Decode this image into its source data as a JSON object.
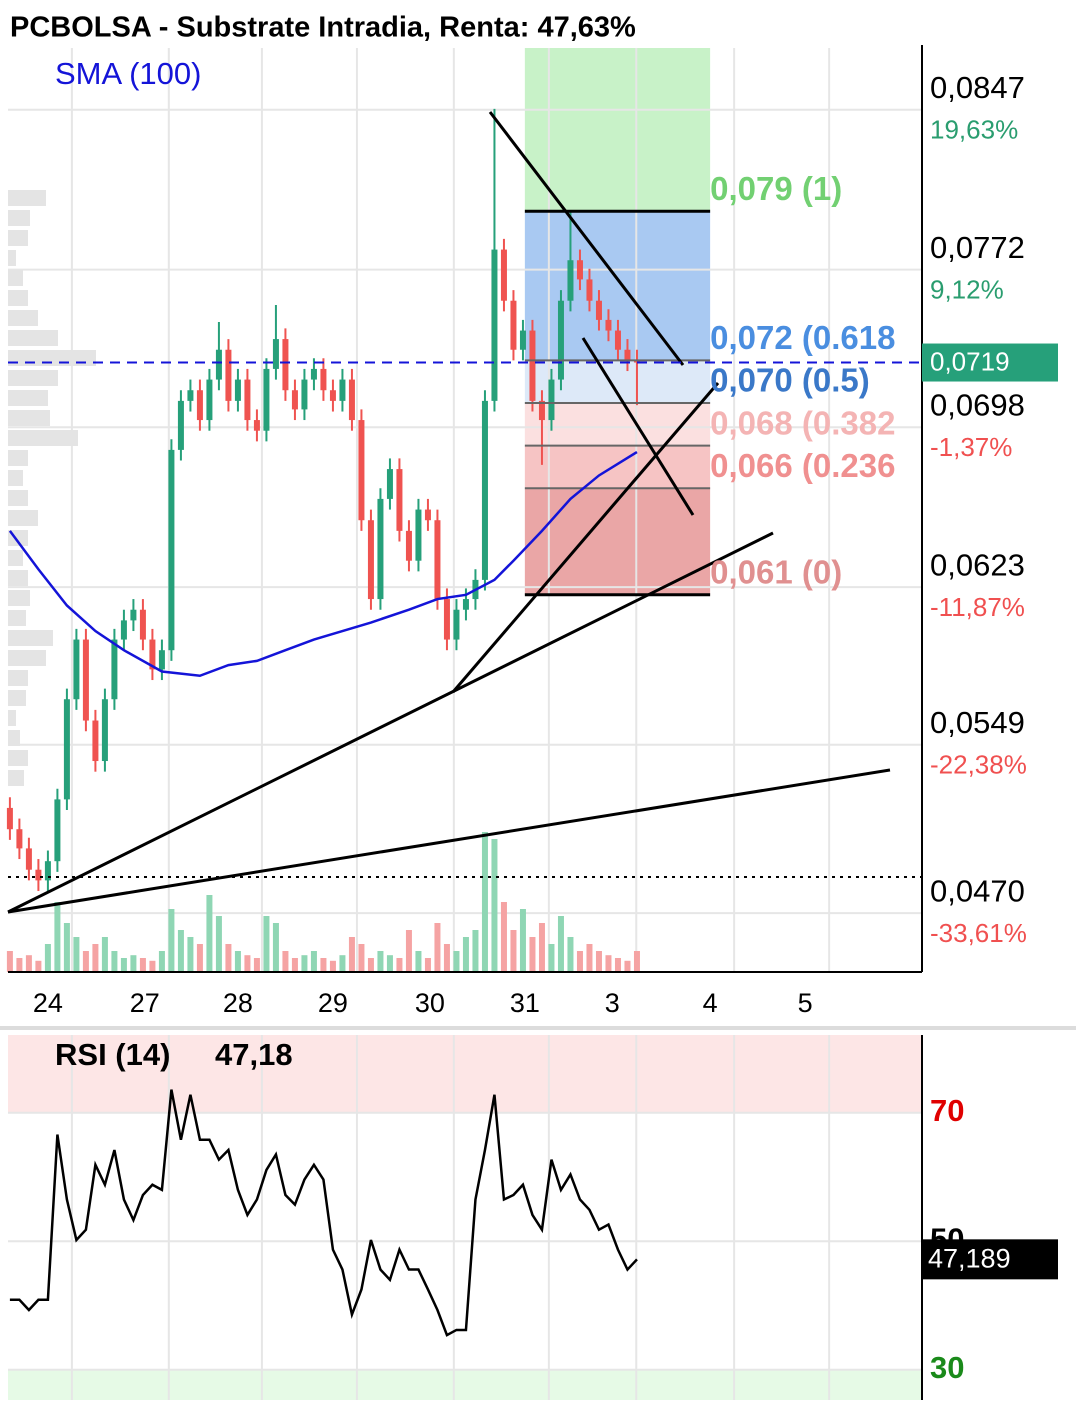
{
  "chart_data": [
    {
      "type": "candlestick",
      "title": "PCBOLSA - Substrate Intradia, Renta: 47,63%",
      "open": [
        0.051,
        0.05,
        0.0491,
        0.0481,
        0.0476,
        0.0485,
        0.0514,
        0.0561,
        0.0589,
        0.0551,
        0.0532,
        0.0561,
        0.0589,
        0.0598,
        0.0603,
        0.0589,
        0.0575,
        0.0584,
        0.0678,
        0.0701,
        0.0706,
        0.0692,
        0.0711,
        0.0725,
        0.0701,
        0.0711,
        0.0692,
        0.0687,
        0.0716,
        0.073,
        0.0706,
        0.0697,
        0.0711,
        0.0716,
        0.0706,
        0.0701,
        0.0711,
        0.0692,
        0.0645,
        0.0608,
        0.0655,
        0.0669,
        0.064,
        0.0626,
        0.065,
        0.0645,
        0.0608,
        0.0589,
        0.0603,
        0.0608,
        0.0617,
        0.0701,
        0.0772,
        0.0748,
        0.0725,
        0.0734,
        0.0701,
        0.0692,
        0.0711,
        0.0748,
        0.0767,
        0.0758,
        0.0748,
        0.0739,
        0.0734,
        0.0725,
        0.072
      ],
      "high": [
        0.0515,
        0.0505,
        0.0496,
        0.0486,
        0.049,
        0.0519,
        0.0566,
        0.0594,
        0.0594,
        0.0556,
        0.0566,
        0.0594,
        0.0603,
        0.0608,
        0.0608,
        0.0594,
        0.0589,
        0.0683,
        0.0706,
        0.0711,
        0.0711,
        0.0716,
        0.0738,
        0.073,
        0.0716,
        0.0716,
        0.0697,
        0.0721,
        0.0746,
        0.0735,
        0.0711,
        0.0716,
        0.0721,
        0.0721,
        0.0711,
        0.0716,
        0.0716,
        0.0697,
        0.065,
        0.066,
        0.0674,
        0.0674,
        0.0645,
        0.0655,
        0.0655,
        0.065,
        0.0613,
        0.0608,
        0.0613,
        0.0622,
        0.0706,
        0.0838,
        0.0777,
        0.0753,
        0.0739,
        0.0739,
        0.0706,
        0.0716,
        0.0753,
        0.079,
        0.0772,
        0.0763,
        0.0753,
        0.0744,
        0.0739,
        0.073,
        0.0725
      ],
      "low": [
        0.0495,
        0.0486,
        0.0476,
        0.0471,
        0.0471,
        0.048,
        0.0509,
        0.0556,
        0.0546,
        0.0527,
        0.0527,
        0.0556,
        0.0584,
        0.0593,
        0.0584,
        0.057,
        0.057,
        0.0579,
        0.0673,
        0.0696,
        0.0687,
        0.0687,
        0.0706,
        0.0696,
        0.0696,
        0.0687,
        0.0682,
        0.0682,
        0.0711,
        0.0701,
        0.0692,
        0.0692,
        0.0706,
        0.0701,
        0.0696,
        0.0696,
        0.0687,
        0.064,
        0.0603,
        0.0603,
        0.065,
        0.0635,
        0.0621,
        0.0621,
        0.064,
        0.0603,
        0.0584,
        0.0584,
        0.0598,
        0.0603,
        0.0612,
        0.0696,
        0.0743,
        0.072,
        0.072,
        0.0696,
        0.0671,
        0.0687,
        0.0706,
        0.0743,
        0.0753,
        0.0743,
        0.0734,
        0.0729,
        0.072,
        0.0715,
        0.0699
      ],
      "close": [
        0.05,
        0.0491,
        0.0481,
        0.0476,
        0.0485,
        0.0514,
        0.0561,
        0.0589,
        0.0551,
        0.0532,
        0.0561,
        0.0589,
        0.0598,
        0.0603,
        0.0589,
        0.0575,
        0.0584,
        0.0678,
        0.0701,
        0.0706,
        0.0692,
        0.0711,
        0.0725,
        0.0701,
        0.0711,
        0.0692,
        0.0687,
        0.0716,
        0.073,
        0.0706,
        0.0697,
        0.0711,
        0.0716,
        0.0706,
        0.0701,
        0.0711,
        0.0692,
        0.0645,
        0.0608,
        0.0655,
        0.0669,
        0.064,
        0.0626,
        0.065,
        0.0645,
        0.0608,
        0.0589,
        0.0603,
        0.0608,
        0.0617,
        0.0701,
        0.0772,
        0.0748,
        0.0725,
        0.0734,
        0.0701,
        0.0692,
        0.0711,
        0.0748,
        0.0767,
        0.0758,
        0.0748,
        0.0739,
        0.0734,
        0.0725,
        0.072,
        0.0719
      ],
      "volume": [
        15,
        10,
        12,
        8,
        20,
        50,
        35,
        25,
        15,
        20,
        25,
        15,
        10,
        12,
        10,
        8,
        15,
        45,
        30,
        25,
        20,
        55,
        40,
        20,
        15,
        12,
        10,
        40,
        35,
        15,
        10,
        12,
        15,
        10,
        8,
        12,
        25,
        20,
        10,
        15,
        12,
        10,
        30,
        15,
        10,
        35,
        20,
        15,
        25,
        30,
        100,
        95,
        50,
        30,
        45,
        25,
        35,
        20,
        40,
        25,
        15,
        20,
        15,
        12,
        10,
        8,
        15
      ],
      "up_color": "#26a07a",
      "down_color": "#ef5350",
      "volume_up_color": "#8fd6b4",
      "volume_down_color": "#f5a3a3",
      "sma": {
        "name": "SMA (100)",
        "color": "#1414d8",
        "x": [
          0,
          3,
          6,
          9,
          12,
          16,
          20,
          23,
          26,
          29,
          32,
          35,
          38,
          42,
          45,
          48,
          51,
          53,
          56,
          59,
          62,
          66
        ],
        "values": [
          0.064,
          0.0622,
          0.0605,
          0.0593,
          0.0584,
          0.0574,
          0.0572,
          0.0577,
          0.0579,
          0.0584,
          0.0589,
          0.0593,
          0.0597,
          0.0603,
          0.0608,
          0.061,
          0.0617,
          0.0626,
          0.064,
          0.0655,
          0.0666,
          0.0677
        ]
      },
      "last_price": {
        "value": 0.0719,
        "label": "0,0719"
      },
      "last_price_color": "#26a07a",
      "fib_x": [
        54.2,
        73.7
      ],
      "fib_levels": [
        {
          "value": 0.079,
          "label": "0,079 (1)"
        },
        {
          "value": 0.072,
          "label": "0,072 (0.618"
        },
        {
          "value": 0.07,
          "label": "0,070 (0.5)"
        },
        {
          "value": 0.068,
          "label": "0,068 (0.382"
        },
        {
          "value": 0.066,
          "label": "0,066 (0.236"
        },
        {
          "value": 0.061,
          "label": "0,061 (0)"
        }
      ],
      "fib_label_colors": [
        "#72d072",
        "#4a8ee0",
        "#3a78c8",
        "#f4b4b4",
        "#f09090",
        "#e09090"
      ],
      "fib_top_fill": "#c8f2c8",
      "fib_fills": [
        "#a9c9f2",
        "#dde9f8",
        "#fbe0e0",
        "#f6c4c4",
        "#eaa6a6"
      ],
      "xlim": [
        -0.2,
        96
      ],
      "ylim": [
        0.0433,
        0.0868
      ],
      "xticks": [
        {
          "value": 4,
          "label": "24"
        },
        {
          "value": 14.2,
          "label": "27"
        },
        {
          "value": 24,
          "label": "28"
        },
        {
          "value": 34,
          "label": "29"
        },
        {
          "value": 44.2,
          "label": "30"
        },
        {
          "value": 54.2,
          "label": "31"
        },
        {
          "value": 63.4,
          "label": "3"
        },
        {
          "value": 73.7,
          "label": "4"
        },
        {
          "value": 83.7,
          "label": "5"
        }
      ],
      "yticks": [
        {
          "value": 0.0847,
          "label": "0,0847"
        },
        {
          "value": 0.0772,
          "label": "0,0772"
        },
        {
          "value": 0.0698,
          "label": "0,0698"
        },
        {
          "value": 0.0623,
          "label": "0,0623"
        },
        {
          "value": 0.0549,
          "label": "0,0549"
        },
        {
          "value": 0.047,
          "label": "0,0470"
        }
      ],
      "ytick_pct": [
        "19,63%",
        "9,12%",
        "-1,37%",
        "-11,87%",
        "-22,38%",
        "-33,61%"
      ],
      "ytick_pct_colors": [
        "#2a9d6f",
        "#2a9d6f",
        "#f05050",
        "#f05050",
        "#f05050",
        "#f05050"
      ],
      "grid": true
    },
    {
      "type": "line",
      "title": "RSI (14)",
      "value_label": "47,18",
      "color": "#000000",
      "values": [
        40.9,
        40.9,
        39.3,
        40.9,
        40.9,
        66.6,
        56.5,
        50.2,
        51.8,
        61.9,
        58.8,
        64.2,
        56.5,
        53.3,
        57.2,
        58.8,
        58.0,
        73.6,
        65.8,
        72.8,
        65.8,
        65.8,
        62.7,
        64.2,
        58.0,
        54.1,
        56.5,
        61.1,
        63.5,
        57.2,
        55.7,
        59.6,
        61.9,
        59.6,
        48.7,
        45.6,
        38.6,
        42.5,
        50.2,
        45.6,
        44.0,
        48.7,
        45.6,
        45.6,
        42.5,
        39.3,
        35.4,
        36.2,
        36.2,
        56.5,
        64.2,
        72.8,
        56.5,
        57.2,
        58.8,
        54.1,
        51.8,
        62.7,
        58.0,
        60.4,
        56.5,
        54.9,
        51.8,
        52.6,
        48.7,
        45.6,
        47.18
      ],
      "last": {
        "value": 47.189,
        "label": "47,189"
      },
      "xlim": [
        -0.2,
        96
      ],
      "ylim": [
        25.3,
        82.1
      ],
      "yticks": [
        70,
        50,
        30
      ],
      "ytick_colors": [
        "#e00000",
        "#000000",
        "#1a8a1a"
      ],
      "overbought_fill": "#fde6e6",
      "oversold_fill": "#e6fae6",
      "grid": true
    }
  ]
}
